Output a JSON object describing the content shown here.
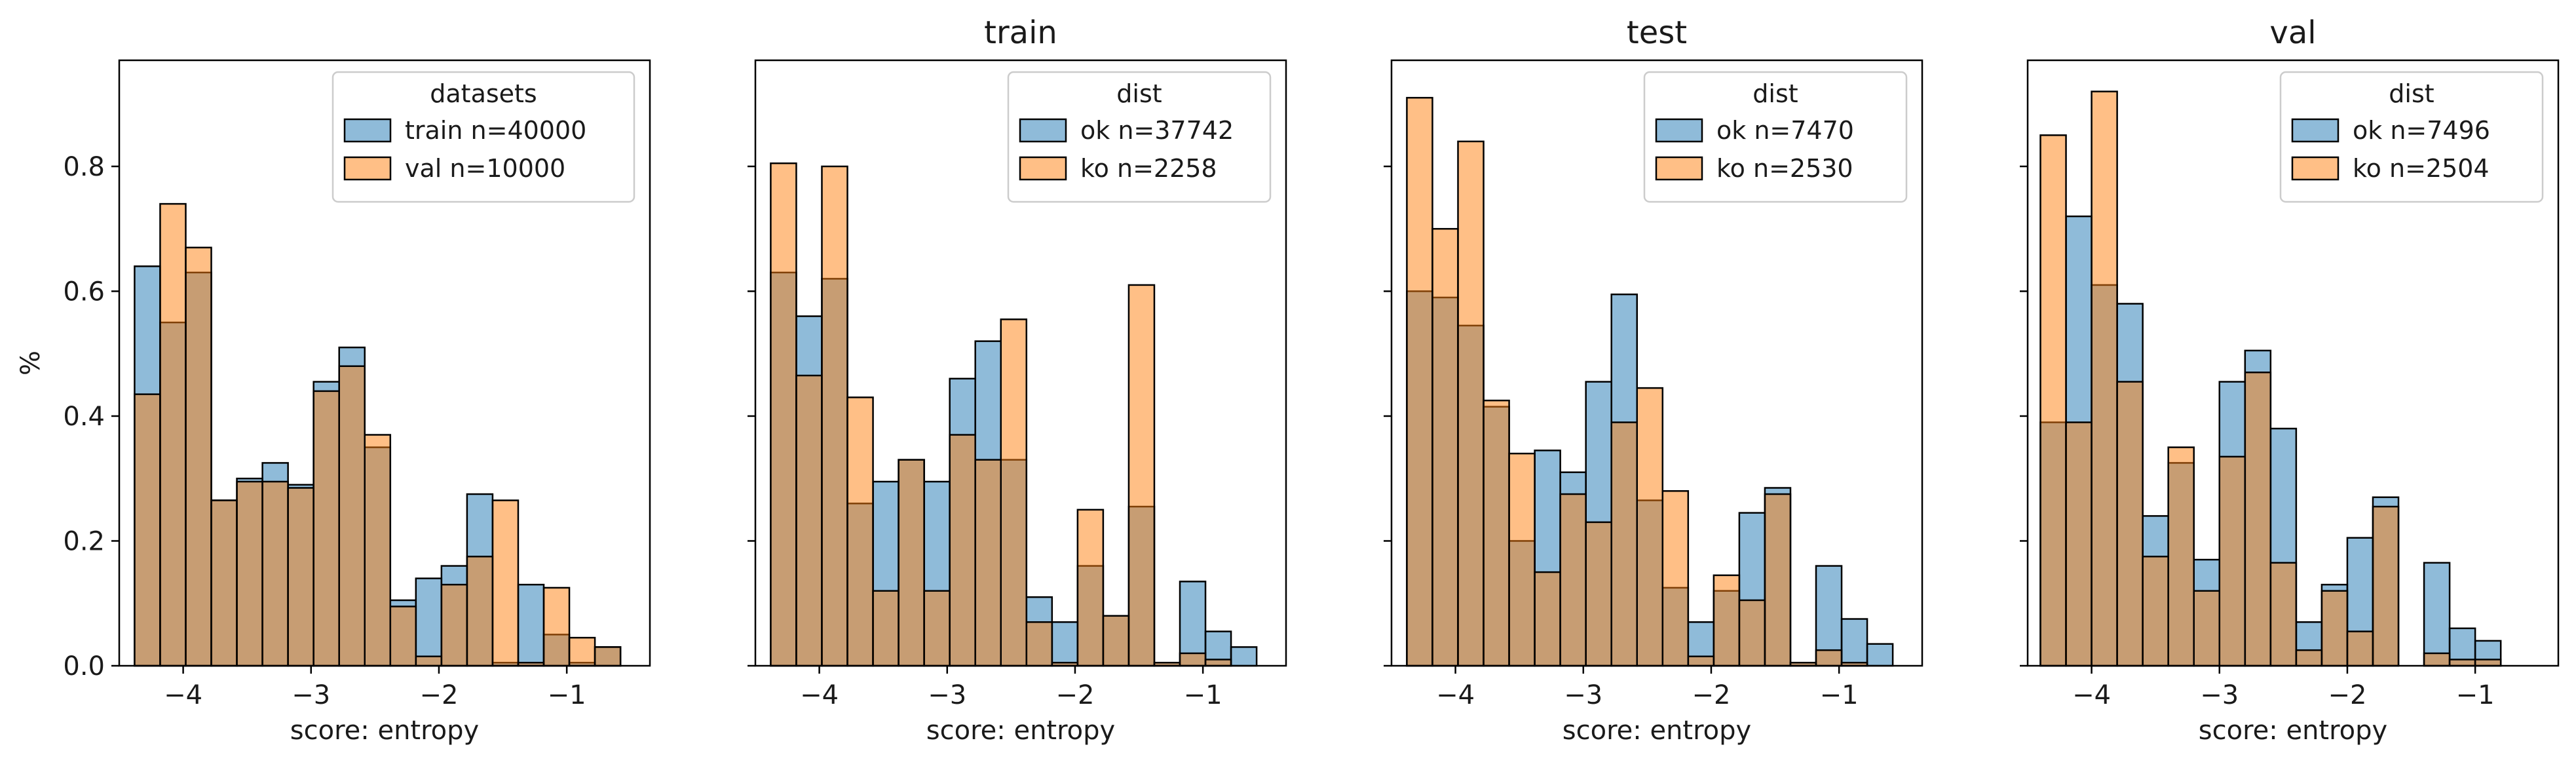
{
  "colors": {
    "blue_fill": "#1f77b4",
    "orange_fill": "#ff7f0e",
    "edge": "#000000",
    "blend": "#c49a6c"
  },
  "chart_data": [
    {
      "type": "bar",
      "title": "",
      "xlabel": "score: entropy",
      "ylabel": "%",
      "xlim": [
        -4.5,
        -0.35
      ],
      "ylim": [
        0,
        0.97
      ],
      "xticks": [
        -4,
        -3,
        -2,
        -1
      ],
      "xtick_labels": [
        "−4",
        "−3",
        "−2",
        "−1"
      ],
      "yticks": [
        0.0,
        0.2,
        0.4,
        0.6,
        0.8
      ],
      "ytick_labels": [
        "0.0",
        "0.2",
        "0.4",
        "0.6",
        "0.8"
      ],
      "bin_edges": [
        -4.38,
        -4.18,
        -3.98,
        -3.78,
        -3.58,
        -3.38,
        -3.18,
        -2.98,
        -2.78,
        -2.58,
        -2.38,
        -2.18,
        -1.98,
        -1.78,
        -1.58,
        -1.38,
        -1.18,
        -0.98,
        -0.78,
        -0.58
      ],
      "legend": {
        "title": "datasets",
        "position": "top-right"
      },
      "series": [
        {
          "name": "train n=40000",
          "values": [
            0.64,
            0.55,
            0.63,
            0.265,
            0.3,
            0.325,
            0.29,
            0.455,
            0.51,
            0.35,
            0.105,
            0.14,
            0.16,
            0.275,
            0.005,
            0.13,
            0.05,
            0.005,
            0.03
          ]
        },
        {
          "name": "val n=10000",
          "values": [
            0.435,
            0.74,
            0.67,
            0.265,
            0.295,
            0.295,
            0.285,
            0.44,
            0.48,
            0.37,
            0.095,
            0.015,
            0.13,
            0.175,
            0.265,
            0.005,
            0.125,
            0.045,
            0.03
          ]
        }
      ]
    },
    {
      "type": "bar",
      "title": "train",
      "xlabel": "score: entropy",
      "ylabel": "",
      "xlim": [
        -4.5,
        -0.35
      ],
      "ylim": [
        0,
        0.97
      ],
      "xticks": [
        -4,
        -3,
        -2,
        -1
      ],
      "xtick_labels": [
        "−4",
        "−3",
        "−2",
        "−1"
      ],
      "yticks": [
        0.0,
        0.2,
        0.4,
        0.6,
        0.8
      ],
      "ytick_labels": [],
      "bin_edges": [
        -4.38,
        -4.18,
        -3.98,
        -3.78,
        -3.58,
        -3.38,
        -3.18,
        -2.98,
        -2.78,
        -2.58,
        -2.38,
        -2.18,
        -1.98,
        -1.78,
        -1.58,
        -1.38,
        -1.18,
        -0.98,
        -0.78,
        -0.58
      ],
      "legend": {
        "title": "dist",
        "position": "top-right"
      },
      "series": [
        {
          "name": "ok n=37742",
          "values": [
            0.63,
            0.56,
            0.62,
            0.26,
            0.295,
            0.33,
            0.295,
            0.46,
            0.52,
            0.33,
            0.11,
            0.07,
            0.16,
            0.08,
            0.255,
            0.005,
            0.135,
            0.055,
            0.03
          ]
        },
        {
          "name": "ko n=2258",
          "values": [
            0.805,
            0.465,
            0.8,
            0.43,
            0.12,
            0.33,
            0.12,
            0.37,
            0.33,
            0.555,
            0.07,
            0.005,
            0.25,
            0.08,
            0.61,
            0.005,
            0.02,
            0.01,
            0.0
          ]
        }
      ]
    },
    {
      "type": "bar",
      "title": "test",
      "xlabel": "score: entropy",
      "ylabel": "",
      "xlim": [
        -4.5,
        -0.35
      ],
      "ylim": [
        0,
        0.97
      ],
      "xticks": [
        -4,
        -3,
        -2,
        -1
      ],
      "xtick_labels": [
        "−4",
        "−3",
        "−2",
        "−1"
      ],
      "yticks": [
        0.0,
        0.2,
        0.4,
        0.6,
        0.8
      ],
      "ytick_labels": [],
      "bin_edges": [
        -4.38,
        -4.18,
        -3.98,
        -3.78,
        -3.58,
        -3.38,
        -3.18,
        -2.98,
        -2.78,
        -2.58,
        -2.38,
        -2.18,
        -1.98,
        -1.78,
        -1.58,
        -1.38,
        -1.18,
        -0.98,
        -0.78,
        -0.58
      ],
      "legend": {
        "title": "dist",
        "position": "top-right"
      },
      "series": [
        {
          "name": "ok n=7470",
          "values": [
            0.6,
            0.59,
            0.545,
            0.415,
            0.2,
            0.345,
            0.31,
            0.455,
            0.595,
            0.265,
            0.125,
            0.07,
            0.12,
            0.245,
            0.285,
            0.005,
            0.16,
            0.075,
            0.035
          ]
        },
        {
          "name": "ko n=2530",
          "values": [
            0.91,
            0.7,
            0.84,
            0.425,
            0.34,
            0.15,
            0.275,
            0.23,
            0.39,
            0.445,
            0.28,
            0.015,
            0.145,
            0.105,
            0.275,
            0.005,
            0.025,
            0.005,
            0.0
          ]
        }
      ]
    },
    {
      "type": "bar",
      "title": "val",
      "xlabel": "score: entropy",
      "ylabel": "",
      "xlim": [
        -4.5,
        -0.35
      ],
      "ylim": [
        0,
        0.97
      ],
      "xticks": [
        -4,
        -3,
        -2,
        -1
      ],
      "xtick_labels": [
        "−4",
        "−3",
        "−2",
        "−1"
      ],
      "yticks": [
        0.0,
        0.2,
        0.4,
        0.6,
        0.8
      ],
      "ytick_labels": [],
      "bin_edges": [
        -4.4,
        -4.2,
        -4.0,
        -3.8,
        -3.6,
        -3.4,
        -3.2,
        -3.0,
        -2.8,
        -2.6,
        -2.4,
        -2.2,
        -2.0,
        -1.8,
        -1.6,
        -1.4,
        -1.2,
        -1.0,
        -0.8,
        -0.6
      ],
      "legend": {
        "title": "dist",
        "position": "top-right"
      },
      "series": [
        {
          "name": "ok n=7496",
          "values": [
            0.39,
            0.72,
            0.61,
            0.58,
            0.24,
            0.325,
            0.17,
            0.455,
            0.505,
            0.38,
            0.07,
            0.13,
            0.205,
            0.27,
            0.0,
            0.165,
            0.06,
            0.04,
            0.0
          ]
        },
        {
          "name": "ko n=2504",
          "values": [
            0.85,
            0.39,
            0.92,
            0.455,
            0.175,
            0.35,
            0.12,
            0.335,
            0.47,
            0.165,
            0.025,
            0.12,
            0.055,
            0.255,
            0.0,
            0.02,
            0.01,
            0.01,
            0.0
          ]
        }
      ]
    }
  ]
}
